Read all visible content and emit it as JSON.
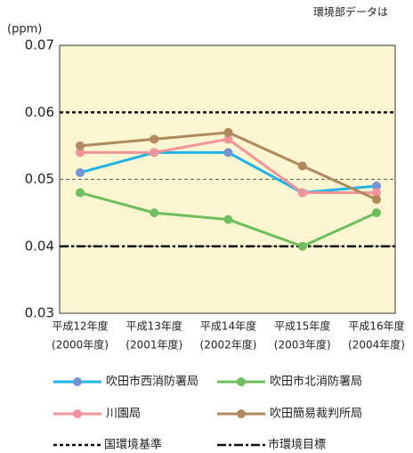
{
  "chart_data": {
    "type": "line",
    "note": "環境部データは",
    "y_label": "(ppm)",
    "categories": [
      [
        "平成12年度",
        "(2000年度)"
      ],
      [
        "平成13年度",
        "(2001年度)"
      ],
      [
        "平成14年度",
        "(2002年度)"
      ],
      [
        "平成15年度",
        "(2003年度)"
      ],
      [
        "平成16年度",
        "(2004年度)"
      ]
    ],
    "ylim": [
      0.03,
      0.07
    ],
    "yticks": [
      0.03,
      0.04,
      0.05,
      0.06,
      0.07
    ],
    "grid": true,
    "background": "#fcf5d2",
    "series": [
      {
        "name": "吹田市西消防署局",
        "color": "#22b4e6",
        "marker_color": "#7592d2",
        "values": [
          0.051,
          0.054,
          0.054,
          0.048,
          0.049
        ]
      },
      {
        "name": "吹田市北消防署局",
        "color": "#6dbf5c",
        "marker_color": "#6dbf5c",
        "values": [
          0.048,
          0.045,
          0.044,
          0.04,
          0.045
        ]
      },
      {
        "name": "川園局",
        "color": "#f3939a",
        "marker_color": "#f3939a",
        "values": [
          0.054,
          0.054,
          0.056,
          0.048,
          0.048
        ]
      },
      {
        "name": "吹田簡易裁判所局",
        "color": "#b08a5c",
        "marker_color": "#b08a5c",
        "values": [
          0.055,
          0.056,
          0.057,
          0.052,
          0.047
        ]
      }
    ],
    "reference_lines": [
      {
        "name": "国環境基準",
        "value": 0.06,
        "style": "dotted"
      },
      {
        "name": "市環境目標",
        "value": 0.04,
        "style": "dashdot"
      }
    ]
  }
}
